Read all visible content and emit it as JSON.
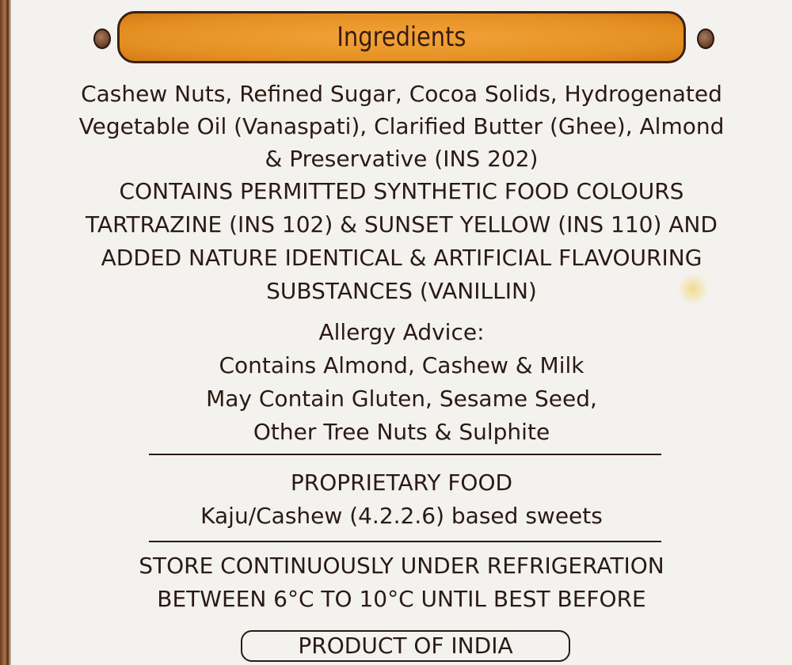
{
  "header": {
    "title": "Ingredients"
  },
  "ingredients": [
    "Cashew Nuts, Refined Sugar, Cocoa Solids, Hydrogenated",
    "Vegetable Oil (Vanaspati), Clarified Butter (Ghee), Almond",
    "& Preservative (INS 202)",
    "CONTAINS PERMITTED SYNTHETIC FOOD COLOURS",
    "TARTRAZINE (INS 102) &  SUNSET YELLOW (INS 110) AND",
    "ADDED NATURE IDENTICAL & ARTIFICIAL  FLAVOURING",
    "SUBSTANCES (VANILLIN)"
  ],
  "allergy": [
    "Allergy Advice:",
    "Contains Almond, Cashew & Milk",
    "May Contain Gluten, Sesame Seed,",
    "Other Tree Nuts & Sulphite"
  ],
  "food_type": [
    "PROPRIETARY FOOD",
    "Kaju/Cashew (4.2.2.6) based sweets"
  ],
  "storage": [
    "STORE CONTINUOUSLY UNDER REFRIGERATION",
    "BETWEEN 6°C TO 10°C UNTIL BEST BEFORE"
  ],
  "origin": "PRODUCT OF INDIA",
  "colors": {
    "banner": "#e48f22",
    "text": "#2a1a14",
    "background": "#f4f2ee"
  }
}
